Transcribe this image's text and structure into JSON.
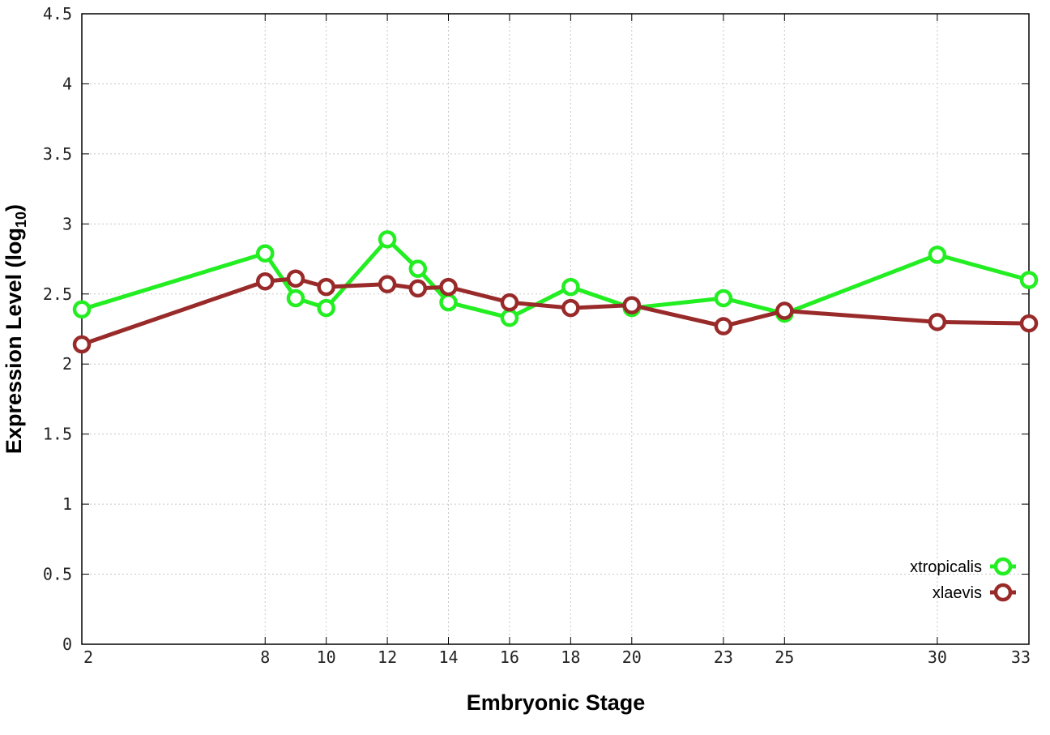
{
  "chart_data": {
    "type": "line",
    "xlabel": "Embryonic Stage",
    "ylabel": "Expression Level (log",
    "ylabel_subscript": "10",
    "ylabel_close": ")",
    "ylim": [
      0,
      4.5
    ],
    "xlim": [
      2,
      33
    ],
    "yticks": [
      "0",
      "0.5",
      "1",
      "1.5",
      "2",
      "2.5",
      "3",
      "3.5",
      "4",
      "4.5"
    ],
    "xticks": [
      2,
      8,
      10,
      12,
      14,
      16,
      18,
      20,
      23,
      25,
      30,
      33
    ],
    "grid": true,
    "legend_position": "bottom-right",
    "series": [
      {
        "name": "xtropicalis",
        "color": "#22ee22",
        "x": [
          2,
          8,
          9,
          10,
          12,
          13,
          14,
          16,
          18,
          20,
          23,
          25,
          30,
          33
        ],
        "y": [
          2.39,
          2.79,
          2.47,
          2.4,
          2.89,
          2.68,
          2.44,
          2.33,
          2.55,
          2.4,
          2.47,
          2.36,
          2.78,
          2.6
        ]
      },
      {
        "name": "xlaevis",
        "color": "#992a2a",
        "x": [
          2,
          8,
          9,
          10,
          12,
          13,
          14,
          16,
          18,
          20,
          23,
          25,
          30,
          33
        ],
        "y": [
          2.14,
          2.59,
          2.61,
          2.55,
          2.57,
          2.54,
          2.55,
          2.44,
          2.4,
          2.42,
          2.27,
          2.38,
          2.3,
          2.29
        ]
      }
    ]
  }
}
